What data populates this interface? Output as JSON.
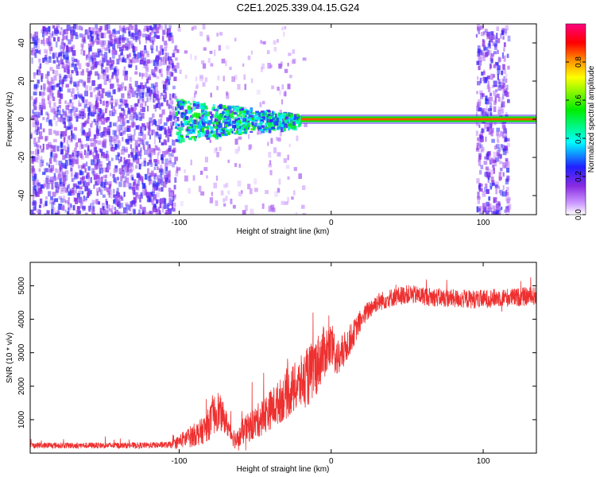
{
  "title": "C2E1.2025.339.04.15.G24",
  "colors": {
    "snr_line": "#ee3030",
    "background": "#ffffff",
    "frame": "#000000"
  },
  "chart_data": [
    {
      "type": "heatmap",
      "xlabel": "Height of straight line (km)",
      "ylabel": "Frequency (Hz)",
      "xlim": [
        -198,
        135
      ],
      "ylim": [
        -50,
        50
      ],
      "xticks": [
        -100,
        0,
        100
      ],
      "xtick_labels": [
        "-100",
        "0",
        "100"
      ],
      "yticks": [
        -40,
        -20,
        0,
        20,
        40
      ],
      "ytick_labels": [
        "-40",
        "-20",
        "0",
        "20",
        "40"
      ],
      "colorbar": {
        "label": "Normalized spectral amplitude",
        "range": [
          0,
          1
        ],
        "ticks": [
          0,
          0.2,
          0.4,
          0.6,
          0.8
        ],
        "tick_labels": [
          "0.0",
          "0.2",
          "0.4",
          "0.6",
          "0.8"
        ],
        "colormap": "rainbow: white-violet-blue-cyan-green-yellow-orange-red-magenta"
      },
      "features": [
        {
          "name": "broadband noise",
          "x_range": [
            -198,
            -103
          ],
          "amplitude": 0.2
        },
        {
          "name": "emerging signal",
          "x_range": [
            -103,
            -20
          ],
          "freq_center": 0,
          "amplitude": 0.45
        },
        {
          "name": "strong carrier",
          "x_range": [
            -20,
            135
          ],
          "freq_center": 0,
          "amplitude": 0.85
        },
        {
          "name": "noise band",
          "x_range": [
            95,
            116
          ],
          "amplitude": 0.2
        }
      ]
    },
    {
      "type": "line",
      "xlabel": "Height of straight line (km)",
      "ylabel": "SNR (10 * v/v)",
      "xlim": [
        -198,
        135
      ],
      "ylim": [
        0,
        5700
      ],
      "xticks": [
        -100,
        0,
        100
      ],
      "xtick_labels": [
        "-100",
        "0",
        "100"
      ],
      "yticks": [
        1000,
        2000,
        3000,
        4000,
        5000
      ],
      "ytick_labels": [
        "1000",
        "2000",
        "3000",
        "4000",
        "5000"
      ],
      "series": [
        {
          "name": "SNR",
          "x": [
            -198,
            -180,
            -160,
            -140,
            -120,
            -105,
            -95,
            -85,
            -80,
            -75,
            -70,
            -66,
            -62,
            -58,
            -50,
            -40,
            -30,
            -20,
            -15,
            -10,
            -5,
            0,
            5,
            10,
            15,
            20,
            25,
            30,
            40,
            50,
            60,
            70,
            80,
            90,
            100,
            110,
            120,
            135
          ],
          "values": [
            230,
            230,
            230,
            230,
            235,
            250,
            450,
            650,
            900,
            1300,
            1000,
            600,
            350,
            650,
            900,
            1300,
            1700,
            2100,
            2300,
            2600,
            3000,
            3200,
            2800,
            3200,
            3600,
            4000,
            4300,
            4500,
            4650,
            4750,
            4700,
            4650,
            4620,
            4600,
            4600,
            4650,
            4650,
            4700
          ],
          "noise": [
            90,
            90,
            90,
            90,
            90,
            100,
            300,
            400,
            500,
            650,
            400,
            300,
            300,
            400,
            500,
            600,
            700,
            800,
            900,
            900,
            800,
            700,
            600,
            500,
            400,
            300,
            300,
            280,
            280,
            280,
            280,
            280,
            280,
            280,
            280,
            280,
            280,
            280
          ]
        }
      ]
    }
  ]
}
